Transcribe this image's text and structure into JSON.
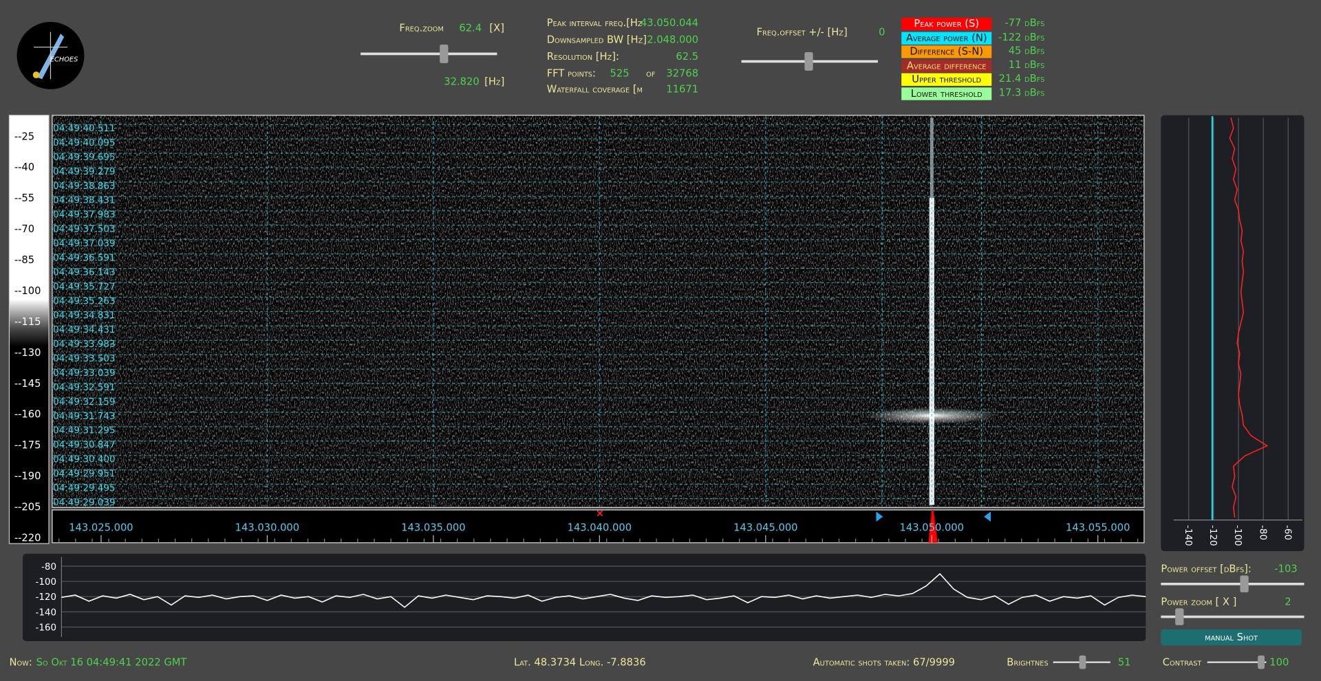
{
  "logo": {
    "text": "ECHOES"
  },
  "freq_zoom": {
    "label": "Freq.zoom",
    "value": "62.4",
    "unit": "[X]",
    "center": "32.820",
    "center_unit": "[Hz]"
  },
  "info": [
    {
      "label": "Peak interval freq.[Hz",
      "value": "43.050.044"
    },
    {
      "label": "Downsampled BW  [Hz]",
      "value": "2.048.000"
    },
    {
      "label": "Resolution [Hz]:",
      "value": "62.5"
    },
    {
      "label": "FFT points:",
      "value": "525",
      "of": "of",
      "total": "32768"
    },
    {
      "label": "Waterfall coverage [m",
      "value": "11671"
    }
  ],
  "freq_offset": {
    "label": "Freq.offset +/- [Hz]",
    "value": "0"
  },
  "levels": [
    {
      "label": "Peak power (S)",
      "value": "-77 dBfs",
      "color": "#ff0000"
    },
    {
      "label": "Average power (N)",
      "value": "-122 dBfs",
      "color": "#00e5ff"
    },
    {
      "label": "Difference (S-N)",
      "value": "45 dBfs",
      "color": "#ff9900"
    },
    {
      "label": "Average difference",
      "value": "11 dBfs",
      "color": "#a52a2a"
    },
    {
      "label": "Upper threshold",
      "value": "21.4 dBfs",
      "color": "#ffff00"
    },
    {
      "label": "Lower threshold",
      "value": "17.3 dBfs",
      "color": "#99ff99"
    }
  ],
  "waterfall": {
    "scale": [
      "--25",
      "--40",
      "--55",
      "--70",
      "--85",
      "--100",
      "--115",
      "--130",
      "--145",
      "--160",
      "--175",
      "--190",
      "--205",
      "--220"
    ],
    "timestamps": [
      "04:49:40.511",
      "04:49:40.095",
      "04:49:39.695",
      "04:49:39.279",
      "04:49:38.863",
      "04:49:38.431",
      "04:49:37.983",
      "04:49:37.503",
      "04:49:37.039",
      "04:49:36.591",
      "04:49:36.143",
      "04:49:35.727",
      "04:49:35.263",
      "04:49:34.831",
      "04:49:34.431",
      "04:49:33.983",
      "04:49:33.503",
      "04:49:33.039",
      "04:49:32.591",
      "04:49:32.159",
      "04:49:31.743",
      "04:49:31.295",
      "04:49:30.847",
      "04:49:30.400",
      "04:49:29.951",
      "04:49:29.495",
      "04:49:29.039"
    ],
    "freq_labels": [
      "143.025.000",
      "143.030.000",
      "143.035.000",
      "143.040.000",
      "143.045.000",
      "143.050.000",
      "143.055.000"
    ]
  },
  "spectrum": {
    "type": "line",
    "ylim": [
      -173,
      -68
    ],
    "yticks": [
      -80,
      -100,
      -120,
      -140,
      -160
    ],
    "color": "#ffffff",
    "values": [
      -121,
      -118,
      -126,
      -119,
      -122,
      -117,
      -124,
      -120,
      -131,
      -119,
      -121,
      -118,
      -123,
      -120,
      -119,
      -125,
      -118,
      -122,
      -120,
      -127,
      -119,
      -121,
      -117,
      -123,
      -120,
      -134,
      -119,
      -122,
      -118,
      -121,
      -124,
      -119,
      -120,
      -122,
      -118,
      -126,
      -121,
      -119,
      -123,
      -120,
      -117,
      -122,
      -125,
      -119,
      -121,
      -120,
      -118,
      -124,
      -122,
      -119,
      -128,
      -120,
      -121,
      -118,
      -123,
      -119,
      -122,
      -120,
      -118,
      -121,
      -117,
      -119,
      -116,
      -106,
      -90,
      -110,
      -121,
      -124,
      -119,
      -130,
      -121,
      -118,
      -126,
      -120,
      -122,
      -119,
      -131,
      -121,
      -118,
      -120
    ]
  },
  "profile": {
    "type": "line",
    "xlim": [
      -161,
      -48.5
    ],
    "xticks": [
      -140,
      -120,
      -100,
      -80,
      -60
    ],
    "color": "#ff2020",
    "noise_line": -121,
    "noise_color": "#20d8e8",
    "values": [
      -106,
      -104,
      -107,
      -103,
      -105,
      -102,
      -104,
      -101,
      -103,
      -100,
      -99,
      -97,
      -98,
      -96,
      -97,
      -96,
      -97,
      -98,
      -97,
      -96,
      -98,
      -100,
      -101,
      -99,
      -100,
      -98,
      -99,
      -100,
      -99,
      -97,
      -96,
      -90,
      -77,
      -95,
      -104,
      -103,
      -105,
      -102,
      -104,
      -103
    ]
  },
  "controls": {
    "power_offset": {
      "label": "Power offset [dBfs]:",
      "value": "-103"
    },
    "power_zoom": {
      "label": "Power zoom  [ X ]",
      "value": "2"
    },
    "button": "manual Shot"
  },
  "status": {
    "now_label": "Now:",
    "now": "So Okt 16 04:49:41 2022 GMT",
    "lat": "Lat. 48.3734  Long. -7.8836",
    "shots": "Automatic shots taken: 67/9999",
    "brightness_label": "Brightnes",
    "brightness": "51",
    "contrast_label": "Contrast",
    "contrast": "100"
  }
}
